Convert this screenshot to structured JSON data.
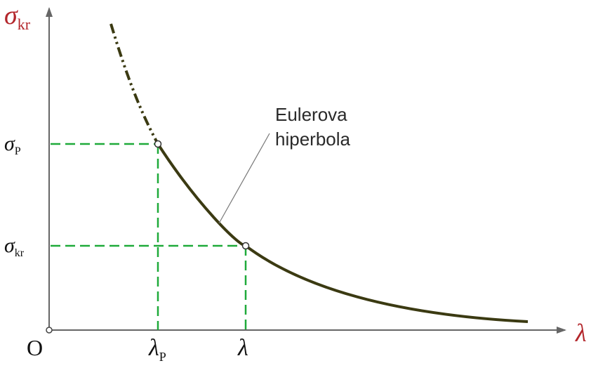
{
  "axes": {
    "y_label": {
      "symbol": "σ",
      "subscript": "kr"
    },
    "x_label": "λ",
    "origin_label": "O"
  },
  "y_ticks": [
    {
      "symbol": "σ",
      "subscript": "P"
    },
    {
      "symbol": "σ",
      "subscript": "kr"
    }
  ],
  "x_ticks": [
    {
      "symbol": "λ",
      "subscript": "P"
    },
    {
      "symbol": "λ",
      "subscript": ""
    }
  ],
  "annotation": {
    "line1": "Eulerova",
    "line2": "hiperbola"
  },
  "colors": {
    "curve": "#3b3a12",
    "guides": "#1faa3a",
    "axis": "#555555",
    "y_axis_label": "#b3262b"
  }
}
